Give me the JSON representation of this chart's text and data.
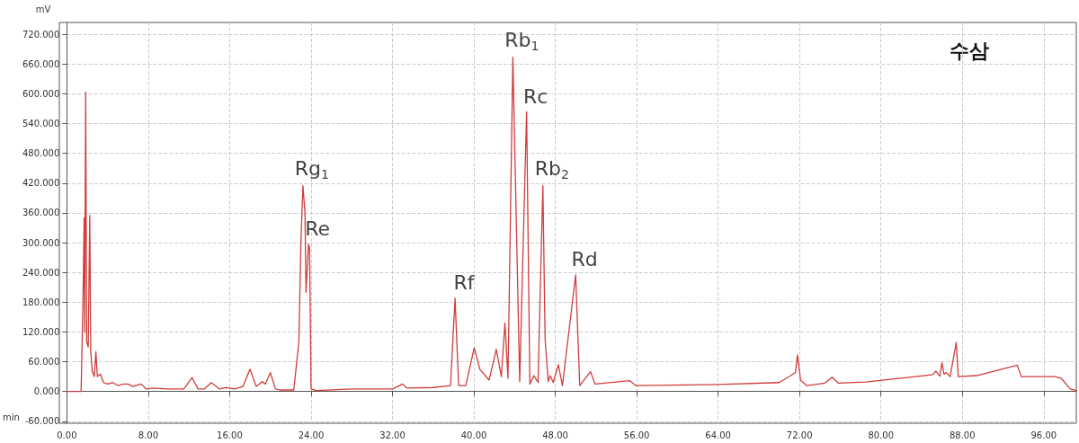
{
  "chart_data": {
    "type": "line",
    "xlabel": "min",
    "ylabel": "mV",
    "annotations": [
      {
        "text": "Rg$_{1}$",
        "x": 23.2,
        "y": 415
      },
      {
        "text": "Re",
        "x": 23.75,
        "y": 297
      },
      {
        "text": "Rf",
        "x": 38.15,
        "y": 188
      },
      {
        "text": "Rb$_{1}$",
        "x": 43.83,
        "y": 674
      },
      {
        "text": "Rc",
        "x": 45.18,
        "y": 564
      },
      {
        "text": "Rb$_{2}$",
        "x": 46.78,
        "y": 415
      },
      {
        "text": "Rd",
        "x": 50.0,
        "y": 235
      },
      "수삼"
    ],
    "series": [
      {
        "color": "#d03c3c",
        "x": [
          0,
          1.4,
          1.6,
          1.7,
          1.75,
          1.85,
          1.95,
          2.1,
          2.25,
          2.35,
          2.5,
          2.7,
          2.85,
          3.0,
          3.3,
          3.6,
          4.0,
          4.5,
          5.0,
          5.6,
          6.0,
          6.5,
          7.3,
          7.8,
          8.5,
          10,
          11.5,
          12.3,
          12.9,
          13.5,
          14.2,
          15,
          15.6,
          16.5,
          17.3,
          18,
          18.6,
          19.2,
          19.5,
          20.0,
          20.5,
          21,
          22.3,
          22.8,
          23.0,
          23.2,
          23.4,
          23.5,
          23.75,
          23.85,
          24,
          24.5,
          28,
          32,
          33.0,
          33.4,
          36,
          37.7,
          38.15,
          38.5,
          39.2,
          40.03,
          40.6,
          41.5,
          42.2,
          42.7,
          43.05,
          43.35,
          43.83,
          44.5,
          45.18,
          45.5,
          45.9,
          46.3,
          46.78,
          47.0,
          47.3,
          47.5,
          47.8,
          48.3,
          48.7,
          50.0,
          50.4,
          51.46,
          51.9,
          55.3,
          55.9,
          64,
          70,
          71.6,
          71.8,
          72.1,
          72.7,
          74.5,
          75.2,
          75.8,
          78.5,
          85.1,
          85.4,
          85.8,
          86.0,
          86.2,
          86.4,
          86.8,
          87.4,
          87.6,
          89.4,
          93.4,
          93.8,
          97.1,
          97.7,
          98.6,
          99.2
        ],
        "values": [
          0,
          0,
          200,
          350,
          120,
          604,
          100,
          90,
          355,
          80,
          40,
          30,
          80,
          30,
          35,
          18,
          15,
          18,
          12,
          15,
          15,
          10,
          15,
          5,
          7,
          5,
          5,
          28,
          5,
          5,
          18,
          5,
          8,
          5,
          10,
          45,
          10,
          20,
          15,
          38,
          5,
          3,
          3,
          100,
          300,
          415,
          360,
          200,
          297,
          290,
          5,
          2,
          5,
          5,
          15,
          7,
          8,
          12,
          188,
          12,
          12,
          88,
          44,
          23,
          85,
          30,
          138,
          27,
          674,
          20,
          564,
          15,
          32,
          18,
          415,
          105,
          20,
          32,
          18,
          54,
          12,
          235,
          12,
          40,
          15,
          22,
          12,
          14,
          18,
          38,
          74,
          23,
          12,
          17,
          29,
          17,
          19,
          34,
          41,
          31,
          58,
          35,
          38,
          30,
          99,
          30,
          32,
          53,
          30,
          30,
          27,
          5,
          2
        ]
      }
    ],
    "xlim": [
      0,
      99.2
    ],
    "xticks": [
      {
        "value": 0,
        "label": "0.00"
      },
      {
        "value": 8,
        "label": "8.00"
      },
      {
        "value": 16,
        "label": "16.00"
      },
      {
        "value": 24,
        "label": "24.00"
      },
      {
        "value": 32,
        "label": "32.00"
      },
      {
        "value": 40,
        "label": "40.00"
      },
      {
        "value": 48,
        "label": "48.00"
      },
      {
        "value": 56,
        "label": "56.00"
      },
      {
        "value": 64,
        "label": "64.00"
      },
      {
        "value": 72,
        "label": "72.00"
      },
      {
        "value": 80,
        "label": "80.00"
      },
      {
        "value": 88,
        "label": "88.00"
      },
      {
        "value": 96,
        "label": "96.00"
      }
    ],
    "ylim": [
      -64,
      744
    ],
    "yticks": [
      {
        "value": -60,
        "label": "-60.000"
      },
      {
        "value": 0,
        "label": "0.000"
      },
      {
        "value": 60,
        "label": "60.000"
      },
      {
        "value": 120,
        "label": "120.000"
      },
      {
        "value": 180,
        "label": "180.000"
      },
      {
        "value": 240,
        "label": "240.000"
      },
      {
        "value": 300,
        "label": "300.000"
      },
      {
        "value": 360,
        "label": "360.000"
      },
      {
        "value": 420,
        "label": "420.000"
      },
      {
        "value": 480,
        "label": "480.000"
      },
      {
        "value": 540,
        "label": "540.000"
      },
      {
        "value": 600,
        "label": "600.000"
      },
      {
        "value": 660,
        "label": "660.000"
      },
      {
        "value": 720,
        "label": "720.000"
      }
    ],
    "grid": true,
    "marker": "none",
    "line_style": "solid"
  }
}
